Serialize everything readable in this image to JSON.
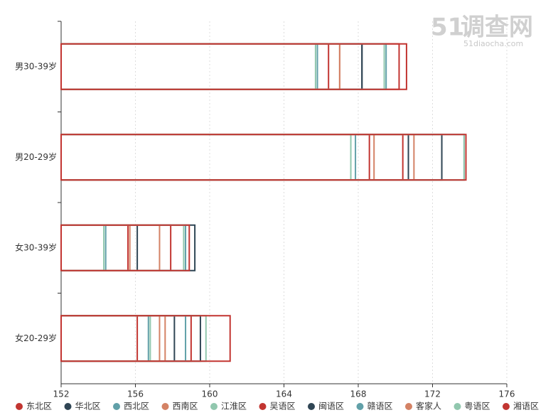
{
  "chart_data": {
    "type": "bar",
    "orientation": "horizontal",
    "watermark": {
      "logo": "51",
      "name": "调查网",
      "url": "51diaocha.com"
    },
    "categories": [
      "男30-39岁",
      "男20-29岁",
      "女30-39岁",
      "女20-29岁"
    ],
    "xlim": [
      152,
      176
    ],
    "xticks": [
      152,
      156,
      160,
      164,
      168,
      172,
      176
    ],
    "grid": true,
    "legend": "bottom",
    "series": [
      {
        "name": "东北区",
        "color": "#c23531",
        "values": [
          166.4,
          168.6,
          155.6,
          156.1
        ]
      },
      {
        "name": "华北区",
        "color": "#2f4554",
        "values": [
          168.2,
          170.7,
          156.1,
          158.1
        ]
      },
      {
        "name": "西北区",
        "color": "#61a0a8",
        "values": [
          165.8,
          167.85,
          154.4,
          156.7
        ]
      },
      {
        "name": "西南区",
        "color": "#d48265",
        "values": [
          167.0,
          168.85,
          155.7,
          157.3
        ]
      },
      {
        "name": "江淮区",
        "color": "#91c7ae",
        "values": [
          165.7,
          167.6,
          154.3,
          156.8
        ]
      },
      {
        "name": "吴语区",
        "color": "#c23531",
        "values": [
          170.2,
          170.4,
          157.9,
          159.0
        ]
      },
      {
        "name": "闽语区",
        "color": "#2f4554",
        "values": [
          168.2,
          172.5,
          159.2,
          159.5
        ]
      },
      {
        "name": "赣语区",
        "color": "#61a0a8",
        "values": [
          169.5,
          173.7,
          158.7,
          158.7
        ]
      },
      {
        "name": "客家人",
        "color": "#d48265",
        "values": [
          167.0,
          171.0,
          157.3,
          157.6
        ]
      },
      {
        "name": "粤语区",
        "color": "#91c7ae",
        "values": [
          169.4,
          173.7,
          158.6,
          159.8
        ]
      },
      {
        "name": "湘语区",
        "color": "#c23531",
        "values": [
          170.6,
          173.8,
          158.9,
          161.1
        ]
      }
    ]
  }
}
